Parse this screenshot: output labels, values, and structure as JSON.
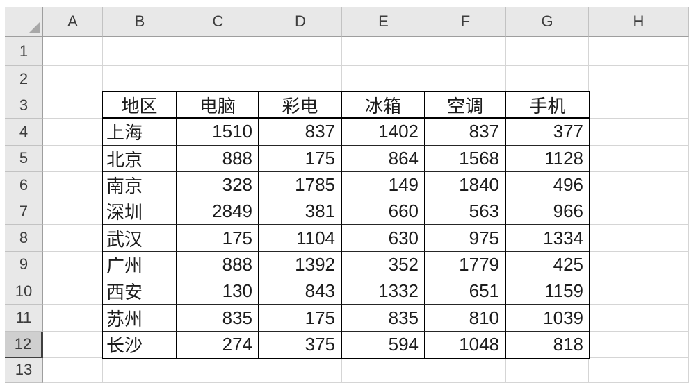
{
  "window": {
    "app": "spreadsheet-worksheet"
  },
  "colors": {
    "header_bg": "#e8e8e8",
    "header_bg_active": "#cfcfcf",
    "header_sep": "#c2c2c2",
    "header_edge": "#9e9e9e",
    "active_edge": "#3f3f3f",
    "header_text": "#3d3d3d",
    "gridline": "#d5d5d5",
    "table_border": "#000000",
    "table_inner_line": "#262626",
    "cell_text": "#1c1c1c",
    "select_all_triangle": "#a8a8a8"
  },
  "spreadsheet": {
    "column_headers": [
      "A",
      "B",
      "C",
      "D",
      "E",
      "F",
      "G",
      "H"
    ],
    "row_headers": [
      "1",
      "2",
      "3",
      "4",
      "5",
      "6",
      "7",
      "8",
      "9",
      "10",
      "11",
      "12",
      "13"
    ],
    "active_row_header": "12",
    "select_all_icon": "gray-triangle"
  },
  "table": {
    "origin": "B3",
    "column_labels": [
      "地区",
      "电脑",
      "彩电",
      "冰箱",
      "空调",
      "手机"
    ],
    "column_keys": [
      "region",
      "computer",
      "color-tv",
      "fridge",
      "air-conditioner",
      "phone"
    ],
    "rows": [
      {
        "region": "上海",
        "values": [
          1510,
          837,
          1402,
          837,
          377
        ]
      },
      {
        "region": "北京",
        "values": [
          888,
          175,
          864,
          1568,
          1128
        ]
      },
      {
        "region": "南京",
        "values": [
          328,
          1785,
          149,
          1840,
          496
        ]
      },
      {
        "region": "深圳",
        "values": [
          2849,
          381,
          660,
          563,
          966
        ]
      },
      {
        "region": "武汉",
        "values": [
          175,
          1104,
          630,
          975,
          1334
        ]
      },
      {
        "region": "广州",
        "values": [
          888,
          1392,
          352,
          1779,
          425
        ]
      },
      {
        "region": "西安",
        "values": [
          130,
          843,
          1332,
          651,
          1159
        ]
      },
      {
        "region": "苏州",
        "values": [
          835,
          175,
          835,
          810,
          1039
        ]
      },
      {
        "region": "长沙",
        "values": [
          274,
          375,
          594,
          1048,
          818
        ]
      }
    ]
  }
}
